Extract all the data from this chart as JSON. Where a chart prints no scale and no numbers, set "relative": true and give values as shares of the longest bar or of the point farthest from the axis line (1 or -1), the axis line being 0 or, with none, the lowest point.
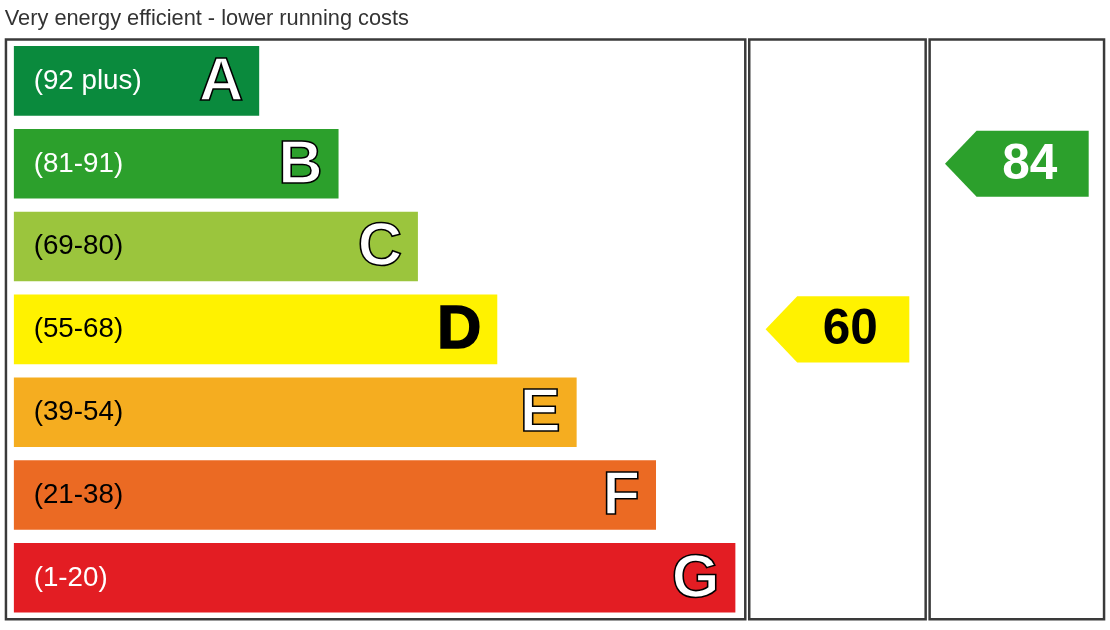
{
  "chart_data": {
    "type": "bar",
    "orientation": "horizontal",
    "relative": true,
    "tick_labels": false,
    "title": "Very energy efficient - lower running costs",
    "categories": [
      "(92 plus)",
      "(81-91)",
      "(69-80)",
      "(55-68)",
      "(39-54)",
      "(21-38)",
      "(1-20)"
    ],
    "values": [
      0.34,
      0.45,
      0.56,
      0.67,
      0.78,
      0.89,
      1
    ],
    "colors": [
      "#0a8a3d",
      "#2ca02c",
      "#9bc53d",
      "#fff200",
      "#f5ad20",
      "#eb6a23",
      "#e31d23"
    ],
    "annotations": [
      {
        "text": "A",
        "x": 0.34,
        "y": "(92 plus)"
      },
      {
        "text": "B",
        "x": 0.45,
        "y": "(81-91)"
      },
      {
        "text": "C",
        "x": 0.56,
        "y": "(69-80)"
      },
      {
        "text": "D",
        "x": 0.67,
        "y": "(55-68)"
      },
      {
        "text": "E",
        "x": 0.78,
        "y": "(39-54)"
      },
      {
        "text": "F",
        "x": 0.89,
        "y": "(21-38)"
      },
      {
        "text": "G",
        "x": 1,
        "y": "(1-20)"
      },
      "60",
      "84"
    ]
  }
}
